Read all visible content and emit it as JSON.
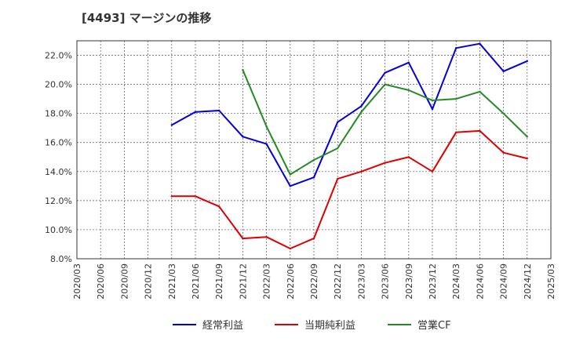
{
  "chart_data": {
    "type": "line",
    "title": "[4493]  マージンの推移",
    "xlabel": "",
    "ylabel": "",
    "ylim": [
      8.0,
      23.0
    ],
    "y_ticks": [
      "8.0%",
      "10.0%",
      "12.0%",
      "14.0%",
      "16.0%",
      "18.0%",
      "20.0%",
      "22.0%"
    ],
    "y_tick_values": [
      8,
      10,
      12,
      14,
      16,
      18,
      20,
      22
    ],
    "x_ticks": [
      "2020/03",
      "2020/06",
      "2020/09",
      "2020/12",
      "2021/03",
      "2021/06",
      "2021/09",
      "2021/12",
      "2022/03",
      "2022/06",
      "2022/09",
      "2022/12",
      "2023/03",
      "2023/06",
      "2023/09",
      "2023/12",
      "2024/03",
      "2024/06",
      "2024/09",
      "2024/12",
      "2025/03"
    ],
    "grid": true,
    "legend_position": "bottom",
    "series": [
      {
        "name": "経常利益",
        "color": "#0000dd",
        "points": [
          {
            "x": "2021/03",
            "y": 17.2
          },
          {
            "x": "2021/06",
            "y": 18.1
          },
          {
            "x": "2021/09",
            "y": 18.2
          },
          {
            "x": "2021/12",
            "y": 16.4
          },
          {
            "x": "2022/03",
            "y": 15.9
          },
          {
            "x": "2022/06",
            "y": 13.0
          },
          {
            "x": "2022/09",
            "y": 13.6
          },
          {
            "x": "2022/12",
            "y": 17.4
          },
          {
            "x": "2023/03",
            "y": 18.5
          },
          {
            "x": "2023/06",
            "y": 20.8
          },
          {
            "x": "2023/09",
            "y": 21.5
          },
          {
            "x": "2023/12",
            "y": 18.3
          },
          {
            "x": "2024/03",
            "y": 22.5
          },
          {
            "x": "2024/06",
            "y": 22.8
          },
          {
            "x": "2024/09",
            "y": 20.9
          },
          {
            "x": "2024/12",
            "y": 21.6
          }
        ]
      },
      {
        "name": "当期純利益",
        "color": "#dd0000",
        "points": [
          {
            "x": "2021/03",
            "y": 12.3
          },
          {
            "x": "2021/06",
            "y": 12.3
          },
          {
            "x": "2021/09",
            "y": 11.6
          },
          {
            "x": "2021/12",
            "y": 9.4
          },
          {
            "x": "2022/03",
            "y": 9.5
          },
          {
            "x": "2022/06",
            "y": 8.7
          },
          {
            "x": "2022/09",
            "y": 9.4
          },
          {
            "x": "2022/12",
            "y": 13.5
          },
          {
            "x": "2023/03",
            "y": 14.0
          },
          {
            "x": "2023/06",
            "y": 14.6
          },
          {
            "x": "2023/09",
            "y": 15.0
          },
          {
            "x": "2023/12",
            "y": 14.0
          },
          {
            "x": "2024/03",
            "y": 16.7
          },
          {
            "x": "2024/06",
            "y": 16.8
          },
          {
            "x": "2024/09",
            "y": 15.3
          },
          {
            "x": "2024/12",
            "y": 14.9
          }
        ]
      },
      {
        "name": "営業CF",
        "color": "#228b22",
        "points": [
          {
            "x": "2021/12",
            "y": 21.0
          },
          {
            "x": "2022/03",
            "y": 17.1
          },
          {
            "x": "2022/06",
            "y": 13.8
          },
          {
            "x": "2022/09",
            "y": 14.8
          },
          {
            "x": "2022/12",
            "y": 15.6
          },
          {
            "x": "2023/03",
            "y": 18.1
          },
          {
            "x": "2023/06",
            "y": 20.0
          },
          {
            "x": "2023/09",
            "y": 19.6
          },
          {
            "x": "2023/12",
            "y": 18.9
          },
          {
            "x": "2024/03",
            "y": 19.0
          },
          {
            "x": "2024/06",
            "y": 19.5
          },
          {
            "x": "2024/09",
            "y": 18.0
          },
          {
            "x": "2024/12",
            "y": 16.4
          }
        ]
      }
    ]
  }
}
